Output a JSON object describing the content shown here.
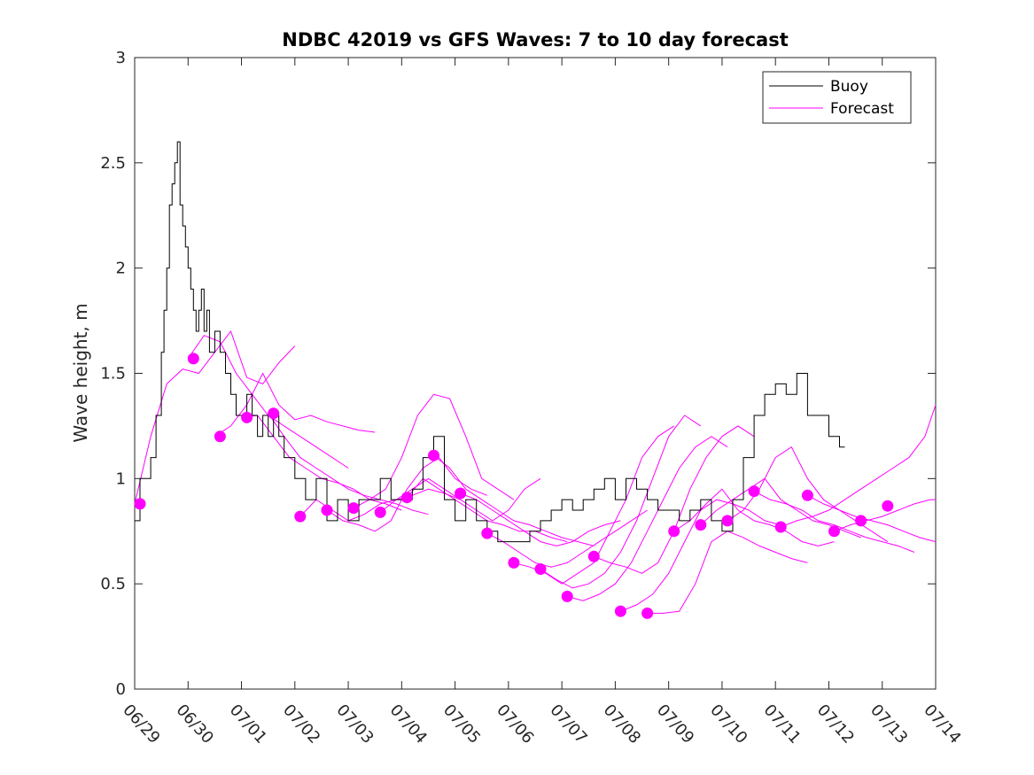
{
  "chart_data": {
    "type": "line",
    "title": "NDBC 42019 vs GFS Waves: 7 to 10 day forecast",
    "xlabel": "",
    "ylabel": "Wave height, m",
    "xlim": [
      "06/29",
      "07/14"
    ],
    "ylim": [
      0,
      3
    ],
    "x_ticks": [
      "06/29",
      "06/30",
      "07/01",
      "07/02",
      "07/03",
      "07/04",
      "07/05",
      "07/06",
      "07/07",
      "07/08",
      "07/09",
      "07/10",
      "07/11",
      "07/12",
      "07/13",
      "07/14"
    ],
    "y_ticks": [
      "0",
      "0.5",
      "1",
      "1.5",
      "2",
      "2.5",
      "3"
    ],
    "x_unit": "days since 06/29",
    "grid": false,
    "legend": {
      "placement": "top-right",
      "entries": [
        "Buoy",
        "Forecast"
      ]
    },
    "colors": {
      "buoy": "#000000",
      "forecast": "#ff00ff"
    },
    "buoy_series": {
      "name": "Buoy",
      "x": [
        0.0,
        0.1,
        0.2,
        0.3,
        0.4,
        0.5,
        0.55,
        0.6,
        0.65,
        0.7,
        0.75,
        0.8,
        0.85,
        0.9,
        0.95,
        1.0,
        1.05,
        1.1,
        1.15,
        1.2,
        1.25,
        1.3,
        1.35,
        1.4,
        1.5,
        1.6,
        1.7,
        1.8,
        1.9,
        2.0,
        2.1,
        2.2,
        2.3,
        2.4,
        2.5,
        2.6,
        2.7,
        2.8,
        3.0,
        3.2,
        3.4,
        3.6,
        3.8,
        4.0,
        4.2,
        4.4,
        4.6,
        4.8,
        5.0,
        5.2,
        5.4,
        5.6,
        5.8,
        6.0,
        6.2,
        6.4,
        6.6,
        6.8,
        7.0,
        7.2,
        7.4,
        7.6,
        7.8,
        8.0,
        8.2,
        8.4,
        8.6,
        8.8,
        9.0,
        9.2,
        9.4,
        9.6,
        9.8,
        10.0,
        10.2,
        10.4,
        10.6,
        10.8,
        11.0,
        11.2,
        11.4,
        11.6,
        11.8,
        12.0,
        12.2,
        12.4,
        12.6,
        12.8,
        13.0,
        13.2,
        13.3
      ],
      "values": [
        0.8,
        1.0,
        1.0,
        1.1,
        1.3,
        1.6,
        1.8,
        2.0,
        2.3,
        2.4,
        2.5,
        2.6,
        2.3,
        2.2,
        2.1,
        2.0,
        1.9,
        1.8,
        1.7,
        1.8,
        1.9,
        1.7,
        1.8,
        1.6,
        1.7,
        1.6,
        1.5,
        1.4,
        1.3,
        1.3,
        1.4,
        1.3,
        1.2,
        1.3,
        1.2,
        1.3,
        1.2,
        1.1,
        1.0,
        0.9,
        1.0,
        0.8,
        0.9,
        0.8,
        0.9,
        0.9,
        1.0,
        0.9,
        0.9,
        0.95,
        1.1,
        1.2,
        0.9,
        0.8,
        0.9,
        0.8,
        0.75,
        0.7,
        0.7,
        0.7,
        0.75,
        0.8,
        0.85,
        0.9,
        0.85,
        0.9,
        0.95,
        1.0,
        0.9,
        1.0,
        0.95,
        0.9,
        0.85,
        0.85,
        0.8,
        0.85,
        0.9,
        0.8,
        0.75,
        0.9,
        1.1,
        1.3,
        1.4,
        1.45,
        1.4,
        1.5,
        1.3,
        1.3,
        1.2,
        1.15,
        1.15
      ]
    },
    "forecast_series": [
      {
        "name": "Forecast",
        "x": [
          0.0,
          0.3,
          0.6,
          0.9,
          1.2,
          1.5,
          1.8,
          2.1,
          2.4,
          2.7,
          3.0
        ],
        "values": [
          0.88,
          1.2,
          1.45,
          1.52,
          1.5,
          1.6,
          1.7,
          1.48,
          1.45,
          1.55,
          1.63
        ]
      },
      {
        "name": "Forecast",
        "x": [
          1.0,
          1.3,
          1.6,
          1.9,
          2.2,
          2.5,
          2.8,
          3.1,
          3.4,
          3.7,
          4.0
        ],
        "values": [
          1.57,
          1.68,
          1.65,
          1.5,
          1.4,
          1.3,
          1.25,
          1.2,
          1.15,
          1.1,
          1.05
        ]
      },
      {
        "name": "Forecast",
        "x": [
          1.5,
          1.8,
          2.1,
          2.4,
          2.7,
          3.0,
          3.3,
          3.6,
          3.9,
          4.2,
          4.5
        ],
        "values": [
          1.2,
          1.25,
          1.35,
          1.5,
          1.35,
          1.28,
          1.3,
          1.27,
          1.25,
          1.23,
          1.22
        ]
      },
      {
        "name": "Forecast",
        "x": [
          2.0,
          2.3,
          2.6,
          2.9,
          3.2,
          3.5,
          3.8,
          4.1,
          4.4,
          4.7,
          5.0
        ],
        "values": [
          1.29,
          1.3,
          1.2,
          1.1,
          1.05,
          1.0,
          0.98,
          0.95,
          0.9,
          0.88,
          0.85
        ]
      },
      {
        "name": "Forecast",
        "x": [
          2.5,
          2.8,
          3.1,
          3.4,
          3.7,
          4.0,
          4.3,
          4.6,
          4.9,
          5.2,
          5.5
        ],
        "values": [
          1.31,
          1.2,
          1.1,
          1.05,
          1.0,
          0.95,
          0.92,
          0.9,
          0.88,
          0.85,
          0.83
        ]
      },
      {
        "name": "Forecast",
        "x": [
          3.1,
          3.4,
          3.7,
          4.0,
          4.3,
          4.6,
          4.9,
          5.2,
          5.5,
          5.8,
          6.1
        ],
        "values": [
          0.82,
          0.9,
          0.85,
          0.8,
          0.83,
          0.88,
          0.9,
          0.92,
          0.95,
          0.93,
          0.9
        ]
      },
      {
        "name": "Forecast",
        "x": [
          3.6,
          3.9,
          4.2,
          4.5,
          4.8,
          5.1,
          5.4,
          5.7,
          6.0,
          6.3,
          6.6
        ],
        "values": [
          0.85,
          0.8,
          0.78,
          0.75,
          0.8,
          0.95,
          1.05,
          1.1,
          1.0,
          0.95,
          0.92
        ]
      },
      {
        "name": "Forecast",
        "x": [
          4.1,
          4.4,
          4.7,
          5.0,
          5.3,
          5.6,
          5.9,
          6.2,
          6.5,
          6.8,
          7.1
        ],
        "values": [
          0.86,
          0.9,
          0.95,
          1.1,
          1.3,
          1.4,
          1.38,
          1.2,
          1.0,
          0.95,
          0.9
        ]
      },
      {
        "name": "Forecast",
        "x": [
          4.6,
          4.9,
          5.2,
          5.5,
          5.8,
          6.1,
          6.4,
          6.7,
          7.0,
          7.3,
          7.6
        ],
        "values": [
          0.84,
          0.9,
          0.95,
          1.0,
          0.95,
          0.9,
          0.85,
          0.8,
          0.85,
          0.95,
          1.0
        ]
      },
      {
        "name": "Forecast",
        "x": [
          5.1,
          5.4,
          5.7,
          6.0,
          6.3,
          6.6,
          6.9,
          7.2,
          7.5,
          7.8,
          8.1
        ],
        "values": [
          0.91,
          1.0,
          0.95,
          0.9,
          0.85,
          0.8,
          0.78,
          0.75,
          0.75,
          0.72,
          0.7
        ]
      },
      {
        "name": "Forecast",
        "x": [
          5.6,
          5.9,
          6.2,
          6.5,
          6.8,
          7.1,
          7.4,
          7.7,
          8.0,
          8.3,
          8.6
        ],
        "values": [
          1.11,
          1.05,
          0.95,
          0.9,
          0.85,
          0.8,
          0.78,
          0.75,
          0.72,
          0.7,
          0.68
        ]
      },
      {
        "name": "Forecast",
        "x": [
          6.1,
          6.4,
          6.7,
          7.0,
          7.3,
          7.6,
          7.9,
          8.2,
          8.5,
          8.8,
          9.1
        ],
        "values": [
          0.93,
          0.9,
          0.85,
          0.8,
          0.75,
          0.7,
          0.68,
          0.7,
          0.75,
          0.78,
          0.8
        ]
      },
      {
        "name": "Forecast",
        "x": [
          6.6,
          6.9,
          7.2,
          7.5,
          7.8,
          8.1,
          8.4,
          8.7,
          9.0,
          9.3,
          9.6
        ],
        "values": [
          0.74,
          0.7,
          0.65,
          0.6,
          0.58,
          0.6,
          0.65,
          0.7,
          0.75,
          0.8,
          0.85
        ]
      },
      {
        "name": "Forecast",
        "x": [
          7.1,
          7.4,
          7.7,
          8.0,
          8.3,
          8.6,
          8.9,
          9.2,
          9.5,
          9.8,
          10.1
        ],
        "values": [
          0.6,
          0.58,
          0.55,
          0.5,
          0.55,
          0.6,
          0.75,
          0.9,
          1.1,
          1.2,
          1.25
        ]
      },
      {
        "name": "Forecast",
        "x": [
          7.6,
          7.9,
          8.2,
          8.5,
          8.8,
          9.1,
          9.4,
          9.7,
          10.0,
          10.3,
          10.6
        ],
        "values": [
          0.57,
          0.52,
          0.48,
          0.5,
          0.55,
          0.65,
          0.8,
          1.0,
          1.2,
          1.3,
          1.25
        ]
      },
      {
        "name": "Forecast",
        "x": [
          8.1,
          8.4,
          8.7,
          9.0,
          9.3,
          9.6,
          9.9,
          10.2,
          10.5,
          10.8,
          11.1
        ],
        "values": [
          0.44,
          0.42,
          0.45,
          0.5,
          0.6,
          0.75,
          0.9,
          1.05,
          1.15,
          1.2,
          1.15
        ]
      },
      {
        "name": "Forecast",
        "x": [
          8.6,
          8.9,
          9.2,
          9.5,
          9.8,
          10.1,
          10.4,
          10.7,
          11.0,
          11.3,
          11.6
        ],
        "values": [
          0.63,
          0.6,
          0.58,
          0.55,
          0.6,
          0.75,
          0.95,
          1.1,
          1.2,
          1.25,
          1.2
        ]
      },
      {
        "name": "Forecast",
        "x": [
          9.1,
          9.4,
          9.7,
          10.0,
          10.3,
          10.6,
          10.9,
          11.2,
          11.5,
          11.8,
          12.1
        ],
        "values": [
          0.37,
          0.4,
          0.45,
          0.55,
          0.7,
          0.85,
          0.9,
          0.88,
          0.85,
          0.8,
          0.78
        ]
      },
      {
        "name": "Forecast",
        "x": [
          9.6,
          9.9,
          10.2,
          10.5,
          10.8,
          11.1,
          11.4,
          11.7,
          12.0,
          12.3,
          12.6
        ],
        "values": [
          0.36,
          0.36,
          0.37,
          0.5,
          0.7,
          0.75,
          0.72,
          0.68,
          0.65,
          0.62,
          0.6
        ]
      },
      {
        "name": "Forecast",
        "x": [
          10.1,
          10.4,
          10.7,
          11.0,
          11.3,
          11.6,
          11.9,
          12.2,
          12.5,
          12.8,
          13.1
        ],
        "values": [
          0.75,
          0.8,
          0.88,
          0.95,
          0.85,
          0.8,
          0.78,
          0.75,
          0.7,
          0.68,
          0.7
        ]
      },
      {
        "name": "Forecast",
        "x": [
          10.6,
          10.9,
          11.2,
          11.5,
          11.8,
          12.1,
          12.4,
          12.7,
          13.0,
          13.3,
          13.6
        ],
        "values": [
          0.78,
          0.85,
          0.9,
          0.95,
          1.0,
          0.9,
          0.85,
          0.8,
          0.78,
          0.75,
          0.72
        ]
      },
      {
        "name": "Forecast",
        "x": [
          11.1,
          11.4,
          11.7,
          12.0,
          12.3,
          12.6,
          12.9,
          13.2,
          13.5,
          13.8,
          14.1
        ],
        "values": [
          0.8,
          0.85,
          0.95,
          1.1,
          1.15,
          1.0,
          0.9,
          0.85,
          0.8,
          0.75,
          0.7
        ]
      },
      {
        "name": "Forecast",
        "x": [
          11.6,
          11.9,
          12.2,
          12.5,
          12.8,
          13.1,
          13.4,
          13.7,
          14.0,
          14.3,
          14.6
        ],
        "values": [
          0.94,
          0.9,
          0.88,
          0.85,
          0.8,
          0.78,
          0.75,
          0.72,
          0.7,
          0.68,
          0.65
        ]
      },
      {
        "name": "Forecast",
        "x": [
          12.1,
          12.4,
          12.7,
          13.0,
          13.3,
          13.6,
          13.9,
          14.2,
          14.5,
          14.8,
          15.0
        ],
        "values": [
          0.77,
          0.8,
          0.82,
          0.85,
          0.9,
          0.95,
          1.0,
          1.05,
          1.1,
          1.2,
          1.35
        ]
      },
      {
        "name": "Forecast",
        "x": [
          12.6,
          12.9,
          13.2,
          13.5,
          13.8,
          14.1,
          14.4,
          14.7,
          15.0
        ],
        "values": [
          0.92,
          0.88,
          0.85,
          0.82,
          0.8,
          0.78,
          0.75,
          0.72,
          0.7
        ]
      },
      {
        "name": "Forecast",
        "x": [
          13.1,
          13.4,
          13.7,
          14.0,
          14.3,
          14.6,
          14.9,
          15.0
        ],
        "values": [
          0.75,
          0.78,
          0.8,
          0.82,
          0.85,
          0.88,
          0.9,
          0.9
        ]
      }
    ],
    "forecast_markers": {
      "x": [
        0.1,
        1.1,
        1.6,
        2.1,
        2.6,
        3.1,
        3.6,
        4.1,
        4.6,
        5.1,
        5.6,
        6.1,
        6.6,
        7.1,
        7.6,
        8.1,
        8.6,
        9.1,
        9.6,
        10.1,
        10.6,
        11.1,
        11.6,
        12.1,
        12.6,
        13.1,
        13.6,
        14.1
      ],
      "values": [
        0.88,
        1.57,
        1.2,
        1.29,
        1.31,
        0.82,
        0.85,
        0.86,
        0.84,
        0.91,
        1.11,
        0.93,
        0.74,
        0.6,
        0.57,
        0.44,
        0.63,
        0.37,
        0.36,
        0.75,
        0.78,
        0.8,
        0.94,
        0.77,
        0.92,
        0.75,
        0.8,
        0.87
      ]
    }
  }
}
